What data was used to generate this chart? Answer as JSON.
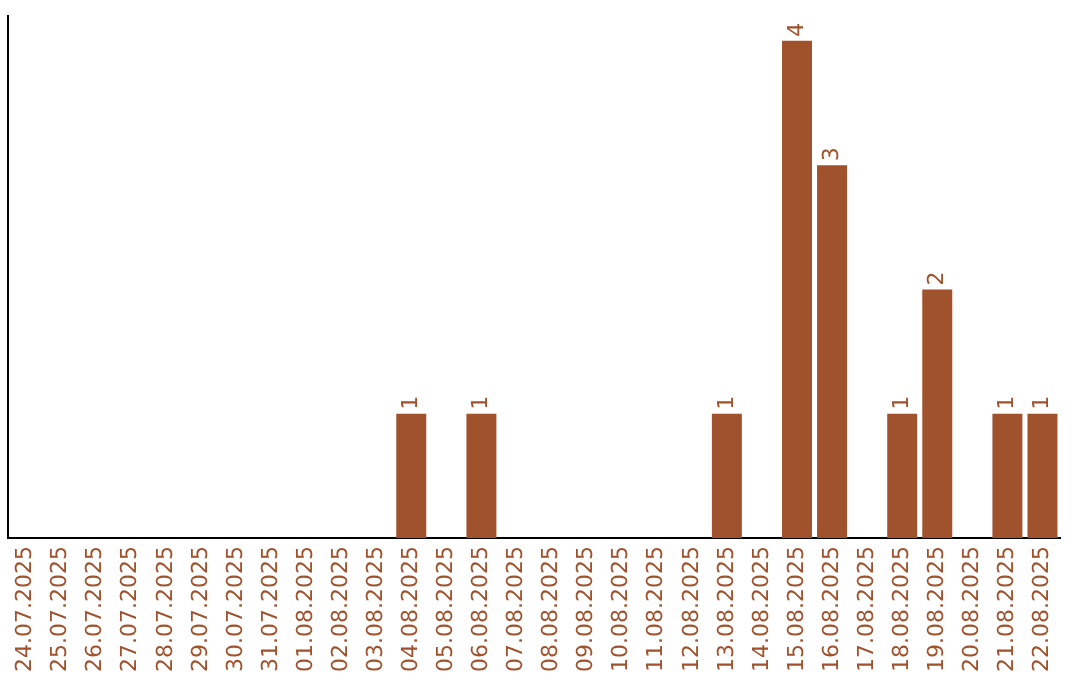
{
  "chart_data": {
    "type": "bar",
    "categories": [
      "24.07.2025",
      "25.07.2025",
      "26.07.2025",
      "27.07.2025",
      "28.07.2025",
      "29.07.2025",
      "30.07.2025",
      "31.07.2025",
      "01.08.2025",
      "02.08.2025",
      "03.08.2025",
      "04.08.2025",
      "05.08.2025",
      "06.08.2025",
      "07.08.2025",
      "08.08.2025",
      "09.08.2025",
      "10.08.2025",
      "11.08.2025",
      "12.08.2025",
      "13.08.2025",
      "14.08.2025",
      "15.08.2025",
      "16.08.2025",
      "17.08.2025",
      "18.08.2025",
      "19.08.2025",
      "20.08.2025",
      "21.08.2025",
      "22.08.2025"
    ],
    "values": [
      0,
      0,
      0,
      0,
      0,
      0,
      0,
      0,
      0,
      0,
      0,
      1,
      0,
      1,
      0,
      0,
      0,
      0,
      0,
      0,
      1,
      0,
      4,
      3,
      0,
      1,
      2,
      0,
      1,
      1
    ],
    "color": "#a0522d",
    "ylim": [
      0,
      4.2
    ],
    "tick_labels": "x",
    "grid": false,
    "legend": false,
    "value_labels": [
      null,
      null,
      null,
      null,
      null,
      null,
      null,
      null,
      null,
      null,
      null,
      "1",
      null,
      "1",
      null,
      null,
      null,
      null,
      null,
      null,
      "1",
      null,
      "4",
      "3",
      null,
      "1",
      "2",
      null,
      "1",
      "1"
    ]
  }
}
